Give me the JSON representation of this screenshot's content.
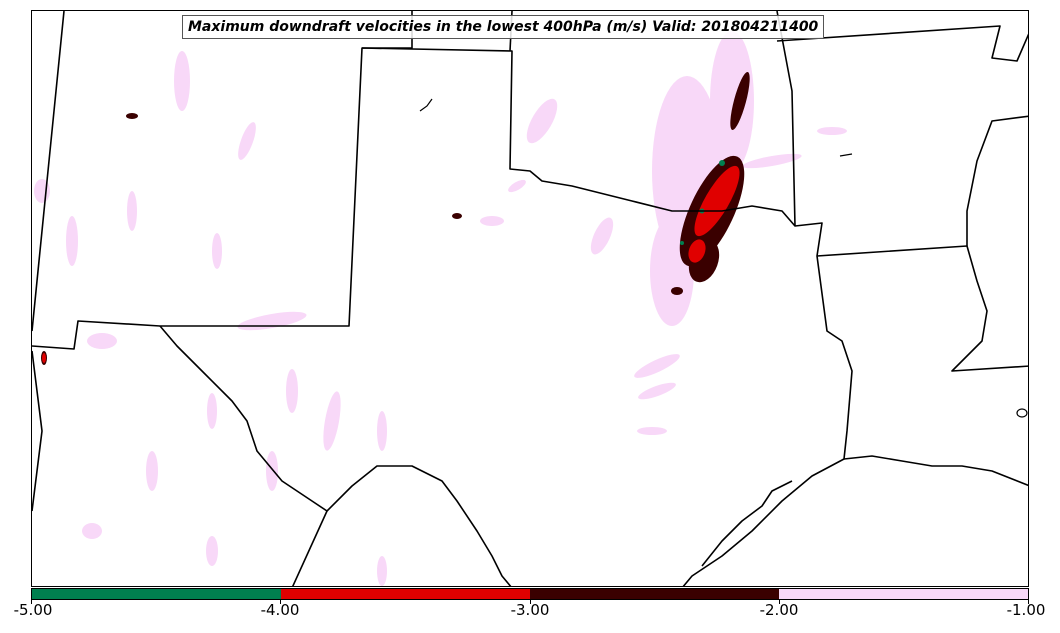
{
  "title": "Maximum downdraft velocities in the lowest 400hPa (m/s) Valid: 201804211400",
  "colorbar": {
    "ticks": [
      "-5.00",
      "-4.00",
      "-3.00",
      "-2.00",
      "-1.00"
    ],
    "bins": [
      {
        "range": [
          -5.0,
          -4.0
        ],
        "color": "#007f4f"
      },
      {
        "range": [
          -4.0,
          -3.0
        ],
        "color": "#e00000"
      },
      {
        "range": [
          -3.0,
          -2.0
        ],
        "color": "#3a0000"
      },
      {
        "range": [
          -2.0,
          -1.0
        ],
        "color": "#f8d8f8"
      }
    ]
  },
  "colors": {
    "border": "#000000",
    "background": "#ffffff"
  }
}
